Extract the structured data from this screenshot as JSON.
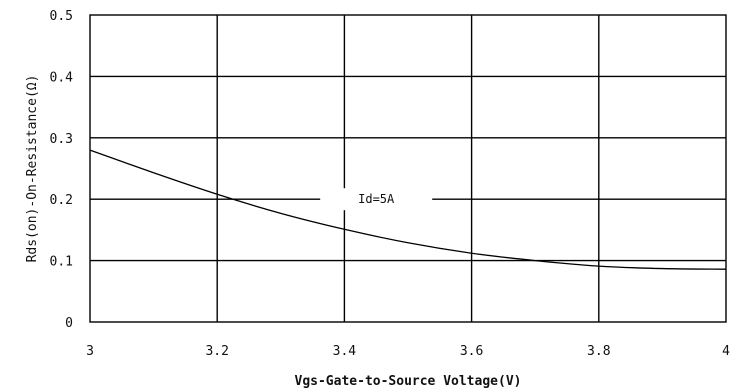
{
  "chart_data": {
    "type": "line",
    "xlabel": "Vgs-Gate-to-Source Voltage(V)",
    "ylabel": "Rds(on)-On-Resistance(Ω)",
    "xlim": [
      3,
      4
    ],
    "ylim": [
      0,
      0.5
    ],
    "x_ticks": [
      3,
      3.2,
      3.4,
      3.6,
      3.8,
      4
    ],
    "x_tick_labels": [
      "3",
      "3.2",
      "3.4",
      "3.6",
      "3.8",
      "4"
    ],
    "y_ticks": [
      0,
      0.1,
      0.2,
      0.3,
      0.4,
      0.5
    ],
    "y_tick_labels": [
      "0",
      "0.1",
      "0.2",
      "0.3",
      "0.4",
      "0.5"
    ],
    "grid": true,
    "series": [
      {
        "x": [
          3.0,
          3.1,
          3.2,
          3.3,
          3.4,
          3.5,
          3.6,
          3.7,
          3.8,
          3.9,
          4.0
        ],
        "values": [
          0.28,
          0.243,
          0.208,
          0.177,
          0.151,
          0.129,
          0.112,
          0.1,
          0.091,
          0.087,
          0.086
        ]
      }
    ],
    "annotations": [
      {
        "text": "Id=5A",
        "x": 3.45,
        "y": 0.2
      }
    ]
  }
}
